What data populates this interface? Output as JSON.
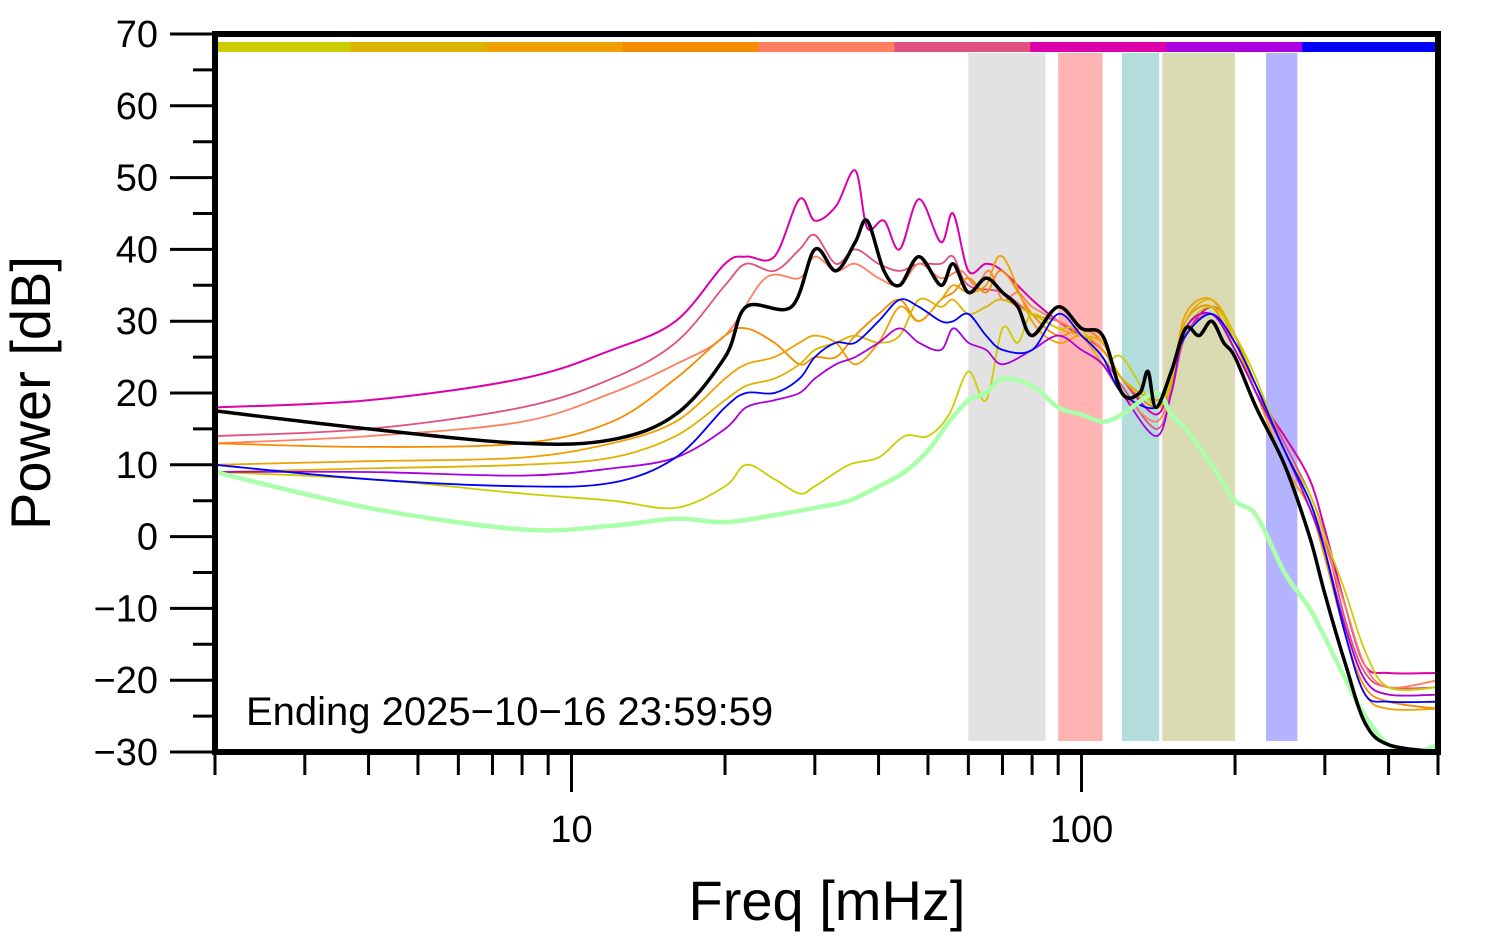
{
  "chart_data": {
    "type": "line",
    "xlabel": "Freq [mHz]",
    "ylabel": "Power [dB]",
    "x_scale": "log",
    "xlim": [
      2,
      500
    ],
    "ylim": [
      -30,
      70
    ],
    "x_tick_labels": [
      "10",
      "100"
    ],
    "y_tick_labels": [
      "70",
      "60",
      "50",
      "40",
      "30",
      "20",
      "10",
      "0",
      "−10",
      "−20",
      "−30"
    ],
    "annotation": "Ending 2025−10−16 23:59:59",
    "grid": false,
    "legend": "none",
    "colors": {
      "mean": "#000000",
      "reference": "#aaffaa",
      "bands": [
        "#e2e2e2",
        "#ffb3b3",
        "#b3dcdc",
        "#dadab3",
        "#b3b3ff"
      ]
    },
    "top_color_bar": [
      "#cccc00",
      "#ddb300",
      "#f0a000",
      "#f58c00",
      "#ff7f60",
      "#e05080",
      "#dd00aa",
      "#aa00dd",
      "#0000ff"
    ],
    "shaded_bands": [
      {
        "from": 60,
        "to": 85
      },
      {
        "from": 90,
        "to": 110
      },
      {
        "from": 120,
        "to": 142
      },
      {
        "from": 144,
        "to": 200
      },
      {
        "from": 230,
        "to": 265
      }
    ],
    "series": [
      {
        "color": "#000000",
        "width": 3.5,
        "x": [
          2,
          4,
          8,
          12,
          16,
          20,
          22,
          27,
          30,
          33,
          36,
          38,
          41,
          44,
          48,
          53,
          56,
          60,
          65,
          70,
          75,
          80,
          90,
          100,
          110,
          120,
          130,
          135,
          140,
          150,
          160,
          170,
          180,
          190,
          200,
          220,
          250,
          280,
          300,
          330,
          360,
          400,
          500
        ],
        "y": [
          17.5,
          15,
          13,
          13.5,
          17,
          25,
          32,
          32,
          40,
          37,
          41,
          44,
          37,
          35,
          39,
          35,
          38,
          34,
          36,
          34,
          32,
          28,
          32,
          29,
          28,
          20,
          20,
          23,
          18,
          23,
          29,
          28,
          30,
          27,
          25,
          18,
          10,
          0,
          -8,
          -18,
          -26,
          -29,
          -31
        ]
      },
      {
        "color": "#aaffaa",
        "width": 4.5,
        "x": [
          2,
          4,
          8,
          12,
          16,
          20,
          25,
          30,
          35,
          40,
          45,
          50,
          55,
          60,
          65,
          70,
          80,
          90,
          100,
          110,
          120,
          140,
          150,
          160,
          180,
          200,
          220,
          250,
          280,
          300,
          330,
          360,
          400,
          450,
          500
        ],
        "y": [
          9,
          4,
          1,
          1.5,
          2.5,
          2,
          3,
          4,
          5,
          7,
          9,
          12,
          16,
          19,
          20,
          22,
          21,
          18,
          17,
          16,
          17,
          20,
          17,
          15,
          10,
          5,
          3,
          -5,
          -10,
          -14,
          -20,
          -25,
          -29,
          -30,
          -29
        ]
      },
      {
        "color": "#dd00aa",
        "width": 2,
        "x": [
          2,
          4,
          8,
          12,
          16,
          20,
          22,
          25,
          28,
          30,
          33,
          36,
          38,
          41,
          44,
          48,
          53,
          56,
          60,
          65,
          70,
          80,
          90,
          100,
          110,
          120,
          140,
          150,
          160,
          180,
          200,
          220,
          250,
          280,
          300,
          330,
          360,
          400,
          500
        ],
        "y": [
          18,
          19,
          22,
          26,
          30,
          38,
          39,
          39,
          47,
          44,
          46,
          51,
          43,
          44,
          40,
          47,
          41,
          45,
          37,
          38,
          37,
          33,
          30,
          28,
          26,
          22,
          17,
          22,
          28,
          32,
          28,
          20,
          14,
          8,
          1,
          -10,
          -18,
          -19,
          -19
        ]
      },
      {
        "color": "#e05080",
        "width": 1.8,
        "x": [
          2,
          4,
          8,
          12,
          16,
          20,
          22,
          25,
          28,
          30,
          33,
          36,
          40,
          44,
          48,
          53,
          56,
          60,
          70,
          80,
          90,
          100,
          110,
          120,
          140,
          150,
          160,
          180,
          200,
          220,
          250,
          280,
          300,
          330,
          360,
          400,
          500
        ],
        "y": [
          14,
          15,
          18,
          22,
          27,
          35,
          38,
          37,
          40,
          42,
          38,
          40,
          38,
          37,
          38,
          38,
          39,
          35,
          34,
          31,
          30,
          28,
          25,
          21,
          15,
          20,
          28,
          31,
          27,
          21,
          13,
          6,
          0,
          -12,
          -19,
          -21,
          -21
        ]
      },
      {
        "color": "#ff7f60",
        "width": 1.8,
        "x": [
          2,
          4,
          8,
          12,
          16,
          20,
          24,
          28,
          30,
          33,
          36,
          40,
          44,
          48,
          53,
          58,
          62,
          66,
          70,
          75,
          80,
          90,
          100,
          110,
          120,
          140,
          150,
          160,
          180,
          200,
          220,
          250,
          280,
          300,
          330,
          360,
          400,
          500
        ],
        "y": [
          13,
          14,
          16,
          20,
          24,
          28,
          36,
          36,
          39,
          37,
          38,
          36,
          35,
          38,
          36,
          37,
          35,
          37,
          33,
          34,
          32,
          30,
          28,
          24,
          20,
          16,
          21,
          29,
          31,
          27,
          20,
          12,
          5,
          -1,
          -10,
          -18,
          -21,
          -20
        ]
      },
      {
        "color": "#f58c00",
        "width": 1.8,
        "x": [
          2,
          4,
          8,
          12,
          16,
          20,
          22,
          25,
          28,
          30,
          33,
          36,
          40,
          44,
          48,
          53,
          56,
          60,
          65,
          70,
          80,
          90,
          100,
          110,
          120,
          140,
          150,
          160,
          180,
          200,
          220,
          250,
          280,
          300,
          330,
          360,
          400,
          500
        ],
        "y": [
          13,
          12.5,
          13,
          16,
          22,
          28,
          29,
          27,
          24,
          25,
          25,
          28,
          31,
          33,
          30,
          33,
          34,
          36,
          34,
          37,
          31,
          28,
          29,
          27,
          22,
          18,
          22,
          30,
          32,
          26,
          20,
          12,
          4,
          -2,
          -14,
          -21,
          -23,
          -24
        ]
      },
      {
        "color": "#f0a000",
        "width": 1.8,
        "x": [
          2,
          4,
          8,
          12,
          16,
          20,
          22,
          25,
          28,
          30,
          33,
          36,
          40,
          44,
          48,
          53,
          56,
          60,
          65,
          70,
          80,
          90,
          100,
          110,
          120,
          140,
          150,
          160,
          180,
          200,
          220,
          250,
          280,
          300,
          330,
          360,
          400,
          500
        ],
        "y": [
          10,
          10.5,
          11,
          13,
          16,
          22,
          24,
          25,
          27,
          28,
          27,
          24,
          27,
          32,
          30,
          33,
          35,
          34,
          35,
          39,
          30,
          27,
          28,
          26,
          22,
          19,
          22,
          31,
          33,
          27,
          20,
          10,
          4,
          -3,
          -14,
          -22,
          -24,
          -24
        ]
      },
      {
        "color": "#ddb300",
        "width": 1.8,
        "x": [
          2,
          4,
          8,
          12,
          16,
          20,
          22,
          25,
          28,
          30,
          33,
          36,
          40,
          44,
          48,
          53,
          56,
          60,
          65,
          70,
          80,
          90,
          100,
          110,
          120,
          140,
          150,
          160,
          180,
          200,
          220,
          250,
          280,
          300,
          330,
          360,
          400,
          500
        ],
        "y": [
          9,
          9.5,
          10,
          11,
          14,
          19,
          21,
          22,
          24,
          26,
          27,
          28,
          27,
          28,
          33,
          32,
          33,
          31,
          32,
          33,
          31,
          29,
          28,
          27,
          22,
          19,
          21,
          30,
          33,
          28,
          21,
          12,
          5,
          -2,
          -13,
          -20,
          -22,
          -22
        ]
      },
      {
        "color": "#cccc00",
        "width": 1.8,
        "x": [
          2,
          4,
          8,
          12,
          16,
          20,
          22,
          25,
          28,
          30,
          35,
          40,
          45,
          50,
          55,
          60,
          65,
          70,
          75,
          80,
          90,
          100,
          110,
          120,
          140,
          150,
          160,
          180,
          200,
          220,
          250,
          280,
          300,
          330,
          360,
          400,
          500
        ],
        "y": [
          9,
          8,
          6,
          5,
          4,
          7,
          10,
          8,
          6,
          7,
          10,
          11,
          14,
          14,
          17,
          23,
          19,
          29,
          27,
          31,
          29,
          29,
          24,
          25,
          18,
          22,
          29,
          32,
          28,
          22,
          12,
          6,
          0,
          -8,
          -16,
          -21,
          -21
        ]
      },
      {
        "color": "#aa00dd",
        "width": 1.8,
        "x": [
          2,
          4,
          8,
          12,
          16,
          20,
          22,
          25,
          28,
          30,
          33,
          36,
          40,
          44,
          48,
          53,
          56,
          60,
          65,
          70,
          80,
          90,
          100,
          110,
          120,
          140,
          150,
          160,
          180,
          200,
          220,
          250,
          280,
          300,
          330,
          360,
          400,
          500
        ],
        "y": [
          9,
          9,
          8.5,
          9.5,
          11,
          15,
          18,
          19,
          20,
          22,
          24,
          25,
          27,
          29,
          27,
          26,
          29,
          27,
          26,
          24,
          26,
          28,
          26,
          24,
          20,
          14,
          20,
          29,
          31,
          26,
          20,
          12,
          4,
          -2,
          -13,
          -20,
          -22,
          -22
        ]
      },
      {
        "color": "#0000ff",
        "width": 1.8,
        "x": [
          2,
          4,
          8,
          12,
          16,
          20,
          22,
          25,
          28,
          30,
          33,
          36,
          40,
          44,
          48,
          53,
          56,
          60,
          65,
          70,
          80,
          90,
          100,
          110,
          120,
          140,
          150,
          160,
          180,
          200,
          220,
          250,
          280,
          300,
          330,
          360,
          400,
          500
        ],
        "y": [
          10,
          8,
          7,
          7.5,
          11,
          18,
          20,
          20,
          22,
          25,
          27,
          27,
          30,
          33,
          32,
          30,
          30,
          31,
          28,
          26,
          26,
          31,
          28,
          25,
          20,
          18,
          23,
          28,
          31,
          27,
          21,
          12,
          5,
          -2,
          -14,
          -22,
          -23,
          -23
        ]
      }
    ]
  }
}
